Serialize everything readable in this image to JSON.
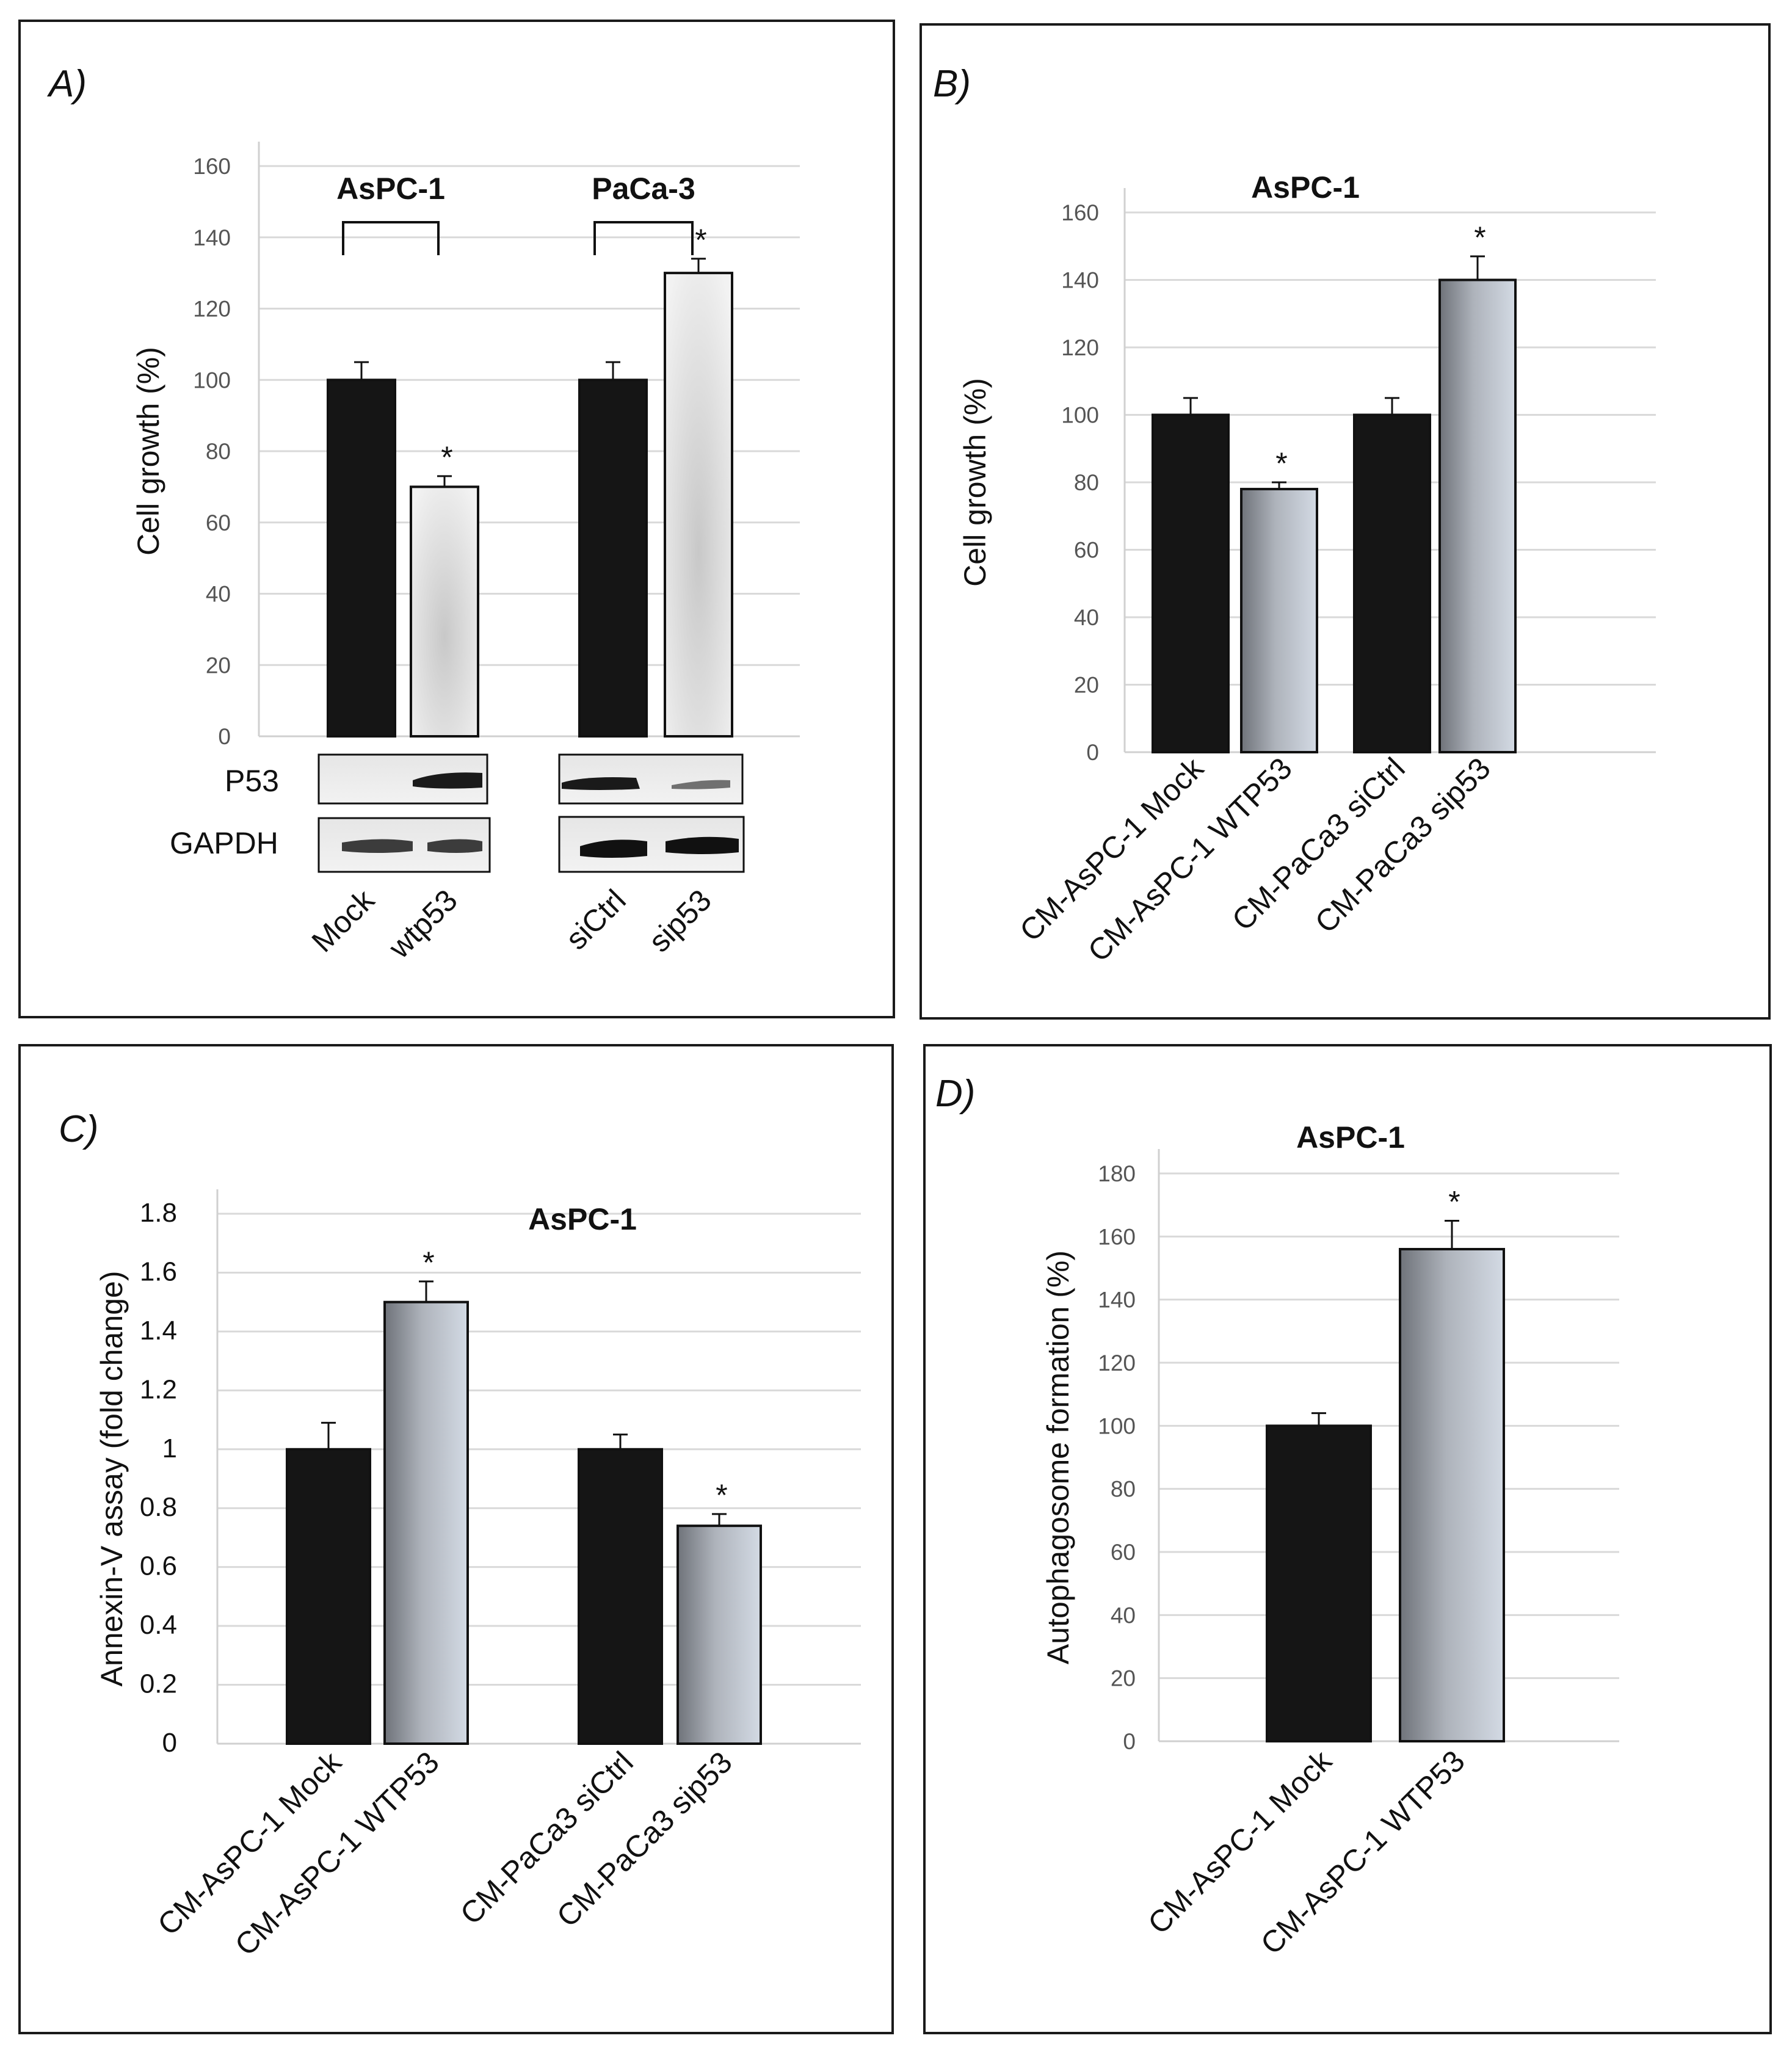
{
  "colors": {
    "dark_bar": "#151515",
    "light_bar_A": "#e4e4e4",
    "grad_dark": "#6f737a",
    "grad_light": "#d3dae4",
    "panel_border": "#1a1a1a"
  },
  "chart_data": [
    {
      "panel": "A)",
      "type": "bar",
      "title": "",
      "ylabel": "Cell growth (%)",
      "xlabel": "",
      "ylim": [
        0,
        160
      ],
      "yticks": [
        0,
        20,
        40,
        60,
        80,
        100,
        120,
        140,
        160
      ],
      "categories": [
        "Mock",
        "wtp53",
        "siCtrl",
        "sip53"
      ],
      "values": [
        100,
        70,
        100,
        130
      ],
      "errors": [
        5,
        3,
        5,
        4
      ],
      "significant": [
        false,
        true,
        false,
        true
      ],
      "groups": [
        {
          "label": "AsPC-1",
          "members": [
            "Mock",
            "wtp53"
          ]
        },
        {
          "label": "PaCa-3",
          "members": [
            "siCtrl",
            "sip53"
          ]
        }
      ],
      "blot_labels": [
        "P53",
        "GAPDH"
      ]
    },
    {
      "panel": "B)",
      "type": "bar",
      "title": "AsPC-1",
      "ylabel": "Cell growth (%)",
      "xlabel": "",
      "ylim": [
        0,
        160
      ],
      "yticks": [
        0,
        20,
        40,
        60,
        80,
        100,
        120,
        140,
        160
      ],
      "categories": [
        "CM-AsPC-1 Mock",
        "CM-AsPC-1 WTP53",
        "CM-PaCa3 siCtrl",
        "CM-PaCa3 sip53"
      ],
      "values": [
        100,
        78,
        100,
        140
      ],
      "errors": [
        5,
        2,
        5,
        7
      ],
      "significant": [
        false,
        true,
        false,
        true
      ]
    },
    {
      "panel": "C)",
      "type": "bar",
      "title": "AsPC-1",
      "ylabel": "Annexin-V assay (fold change)",
      "xlabel": "",
      "ylim": [
        0,
        1.8
      ],
      "yticks": [
        0,
        0.2,
        0.4,
        0.6,
        0.8,
        1,
        1.2,
        1.4,
        1.6,
        1.8
      ],
      "categories": [
        "CM-AsPC-1 Mock",
        "CM-AsPC-1 WTP53",
        "CM-PaCa3 siCtrl",
        "CM-PaCa3 sip53"
      ],
      "values": [
        1.0,
        1.5,
        1.0,
        0.74
      ],
      "errors": [
        0.09,
        0.07,
        0.05,
        0.04
      ],
      "significant": [
        false,
        true,
        false,
        true
      ]
    },
    {
      "panel": "D)",
      "type": "bar",
      "title": "AsPC-1",
      "ylabel": "Autophagosome formation (%)",
      "xlabel": "",
      "ylim": [
        0,
        180
      ],
      "yticks": [
        0,
        20,
        40,
        60,
        80,
        100,
        120,
        140,
        160,
        180
      ],
      "categories": [
        "CM-AsPC-1 Mock",
        "CM-AsPC-1 WTP53"
      ],
      "values": [
        100,
        156
      ],
      "errors": [
        4,
        9
      ],
      "significant": [
        false,
        true
      ]
    }
  ]
}
